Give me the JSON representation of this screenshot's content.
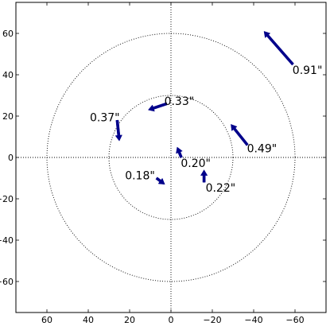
{
  "chart_data": {
    "type": "quiver",
    "xlim": [
      75,
      -75
    ],
    "ylim": [
      -75,
      75
    ],
    "x_inverted": true,
    "x_ticks": [
      60,
      40,
      20,
      0,
      -20,
      -40,
      -60
    ],
    "x_tick_labels": [
      "60",
      "40",
      "20",
      "0",
      "−20",
      "−40",
      "−60"
    ],
    "y_ticks": [
      60,
      40,
      20,
      0,
      -20,
      -40,
      -60
    ],
    "y_tick_labels": [
      "60",
      "40",
      "20",
      "0",
      "−20",
      "−40",
      "−60"
    ],
    "reference_circles": [
      {
        "radius": 30,
        "style": "dotted"
      },
      {
        "radius": 60,
        "style": "dotted"
      }
    ],
    "center_crosshair": "dotted",
    "arrow_color": "#00008b",
    "vectors": [
      {
        "label": "0.91\"",
        "x0": -59,
        "y0": 45,
        "x1": -45,
        "y1": 61
      },
      {
        "label": "0.33\"",
        "x0": 2,
        "y0": 26,
        "x1": 11,
        "y1": 23
      },
      {
        "label": "0.37\"",
        "x0": 26,
        "y0": 18,
        "x1": 25,
        "y1": 8
      },
      {
        "label": "0.49\"",
        "x0": -37,
        "y0": 6,
        "x1": -29,
        "y1": 16
      },
      {
        "label": "0.20\"",
        "x0": -5,
        "y0": 0,
        "x1": -3,
        "y1": 5
      },
      {
        "label": "0.18\"",
        "x0": 7,
        "y0": -10,
        "x1": 3,
        "y1": -13
      },
      {
        "label": "0.22\"",
        "x0": -16,
        "y0": -12,
        "x1": -16,
        "y1": -6
      }
    ],
    "label_offsets_note_free": true,
    "labels": [
      {
        "text": "0.91\"",
        "x": -66,
        "y": 42
      },
      {
        "text": "0.33\"",
        "x": -4,
        "y": 27
      },
      {
        "text": "0.37\"",
        "x": 32,
        "y": 19
      },
      {
        "text": "0.49\"",
        "x": -44,
        "y": 4
      },
      {
        "text": "0.20\"",
        "x": -12,
        "y": -3
      },
      {
        "text": "0.18\"",
        "x": 15,
        "y": -9
      },
      {
        "text": "0.22\"",
        "x": -24,
        "y": -15
      }
    ]
  }
}
